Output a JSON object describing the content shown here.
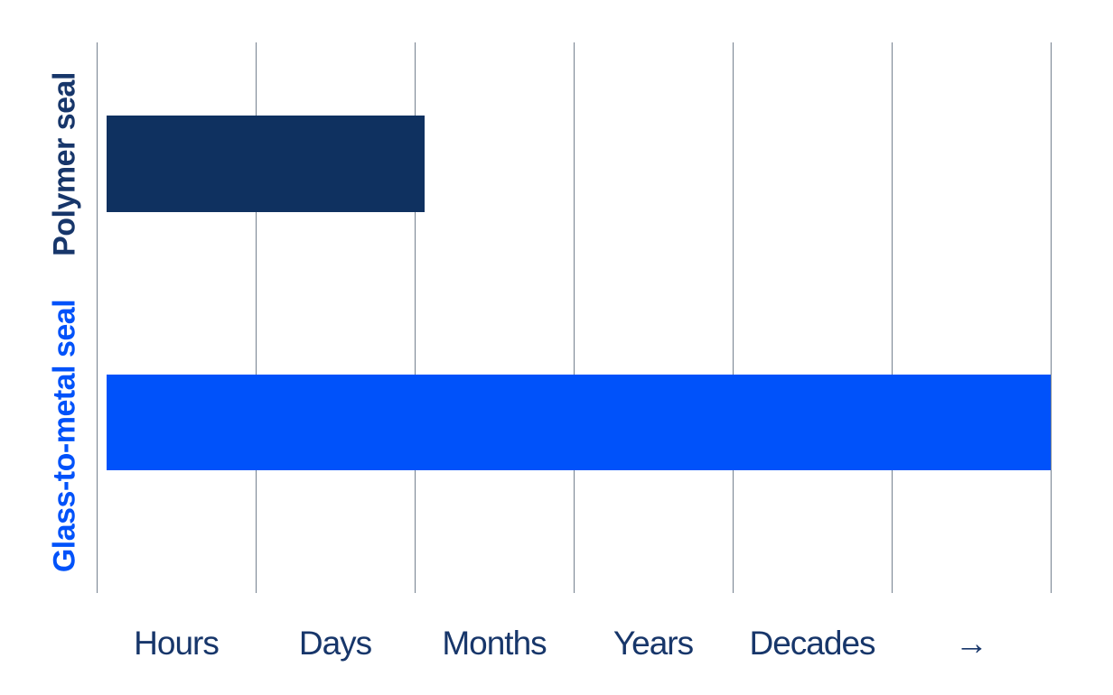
{
  "chart_data": {
    "type": "bar",
    "orientation": "horizontal",
    "title": "",
    "background": "#ffffff",
    "categories": [
      "Polymer seal",
      "Glass-to-metal seal"
    ],
    "series": [
      {
        "name": "Polymer seal",
        "bar_color": "#0f3160",
        "label_color": "#17366a",
        "start": 0.06,
        "end": 2.06
      },
      {
        "name": "Glass-to-metal seal",
        "bar_color": "#0052fa",
        "label_color": "#0052fa",
        "start": 0.06,
        "end": 6.0
      }
    ],
    "x_ticks": [
      "Hours",
      "Days",
      "Months",
      "Years",
      "Decades",
      "→"
    ],
    "xlim": [
      0,
      6
    ],
    "gridline_count": 7,
    "grid_color": "#76818f",
    "grid_on": true,
    "legend": "none",
    "note_arrow_icon": "right-arrow-icon"
  }
}
